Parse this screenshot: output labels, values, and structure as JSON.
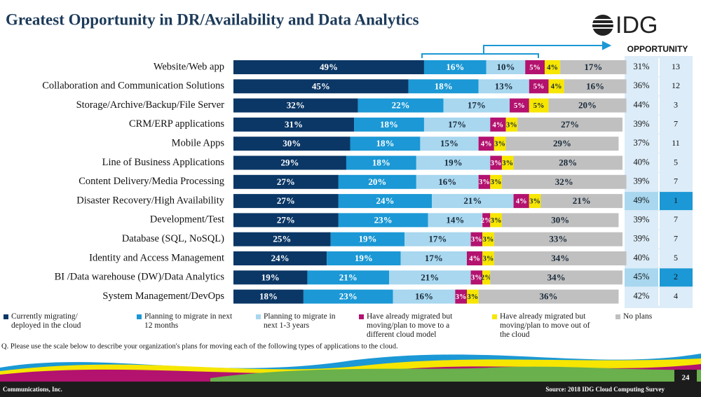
{
  "chart_data": {
    "type": "stacked_barh",
    "title": "Greatest Opportunity in DR/Availability and Data Analytics",
    "categories": [
      "Website/Web app",
      "Collaboration and Communication Solutions",
      "Storage/Archive/Backup/File Server",
      "CRM/ERP applications",
      "Mobile Apps",
      "Line of Business Applications",
      "Content Delivery/Media Processing",
      "Disaster Recovery/High Availability",
      "Development/Test",
      "Database (SQL, NoSQL)",
      "Identity and Access Management",
      "BI /Data warehouse (DW)/Data Analytics",
      "System Management/DevOps"
    ],
    "xlim": [
      0,
      100
    ],
    "series": [
      {
        "name": "Currently migrating/ deployed in the cloud",
        "color": "#0b3766",
        "values": [
          49,
          45,
          32,
          31,
          30,
          29,
          27,
          27,
          27,
          25,
          24,
          19,
          18
        ],
        "value_labels": [
          "49%",
          "45%",
          "32%",
          "31%",
          "30%",
          "29%",
          "27%",
          "27%",
          "27%",
          "25%",
          "24%",
          "19%",
          "18%"
        ]
      },
      {
        "name": "Planning to migrate in next 12 months",
        "color": "#1b98d5",
        "values": [
          16,
          18,
          22,
          18,
          18,
          18,
          20,
          24,
          23,
          19,
          19,
          21,
          23
        ],
        "value_labels": [
          "16%",
          "18%",
          "22%",
          "18%",
          "18%",
          "18%",
          "20%",
          "24%",
          "23%",
          "19%",
          "19%",
          "21%",
          "23%"
        ]
      },
      {
        "name": "Planning to migrate in next 1-3 years",
        "color": "#a8d7ef",
        "values": [
          10,
          13,
          17,
          17,
          15,
          19,
          16,
          21,
          14,
          17,
          17,
          21,
          16
        ],
        "value_labels": [
          "10%",
          "13%",
          "17%",
          "17%",
          "15%",
          "19%",
          "16%",
          "21%",
          "14%",
          "17%",
          "17%",
          "21%",
          "16%"
        ]
      },
      {
        "name": "Have already migrated but moving/plan to move to a different cloud model",
        "color": "#b3126f",
        "values": [
          5,
          5,
          5,
          4,
          4,
          3,
          3,
          4,
          2,
          3,
          4,
          3,
          3
        ],
        "value_labels": [
          "5%",
          "5%",
          "5%",
          "4%",
          "4%",
          "3%",
          "3%",
          "4%",
          "2%",
          "3%",
          "4%",
          "3%",
          "3%"
        ]
      },
      {
        "name": "Have already migrated but moving/plan to move out of the cloud",
        "color": "#f6e600",
        "values": [
          4,
          4,
          5,
          3,
          3,
          3,
          3,
          3,
          3,
          3,
          3,
          2,
          3
        ],
        "value_labels": [
          "4%",
          "4%",
          "5%",
          "3%",
          "3%",
          "3%",
          "3%",
          "3%",
          "3%",
          "3%",
          "3%",
          "2%",
          "3%"
        ]
      },
      {
        "name": "No plans",
        "color": "#c0c0c0",
        "values": [
          17,
          16,
          20,
          27,
          29,
          28,
          32,
          21,
          30,
          33,
          34,
          34,
          36
        ],
        "value_labels": [
          "17%",
          "16%",
          "20%",
          "27%",
          "29%",
          "28%",
          "32%",
          "21%",
          "30%",
          "33%",
          "34%",
          "34%",
          "36%"
        ]
      }
    ]
  },
  "table": {
    "header": "OPPORTUNITY",
    "rows": [
      [
        "31%",
        "13"
      ],
      [
        "36%",
        "12"
      ],
      [
        "44%",
        "3"
      ],
      [
        "39%",
        "7"
      ],
      [
        "37%",
        "11"
      ],
      [
        "40%",
        "5"
      ],
      [
        "39%",
        "7"
      ],
      [
        "49%",
        "1"
      ],
      [
        "39%",
        "7"
      ],
      [
        "39%",
        "7"
      ],
      [
        "40%",
        "5"
      ],
      [
        "45%",
        "2"
      ],
      [
        "42%",
        "4"
      ]
    ]
  },
  "logo": "IDG",
  "note": "Q. Please use the scale below to describe your organization's plans for moving each of the following types of applications to the cloud.",
  "footer": {
    "company": "Communications, Inc.",
    "source": "Source: 2018 IDG Cloud Computing Survey",
    "page": "24"
  }
}
